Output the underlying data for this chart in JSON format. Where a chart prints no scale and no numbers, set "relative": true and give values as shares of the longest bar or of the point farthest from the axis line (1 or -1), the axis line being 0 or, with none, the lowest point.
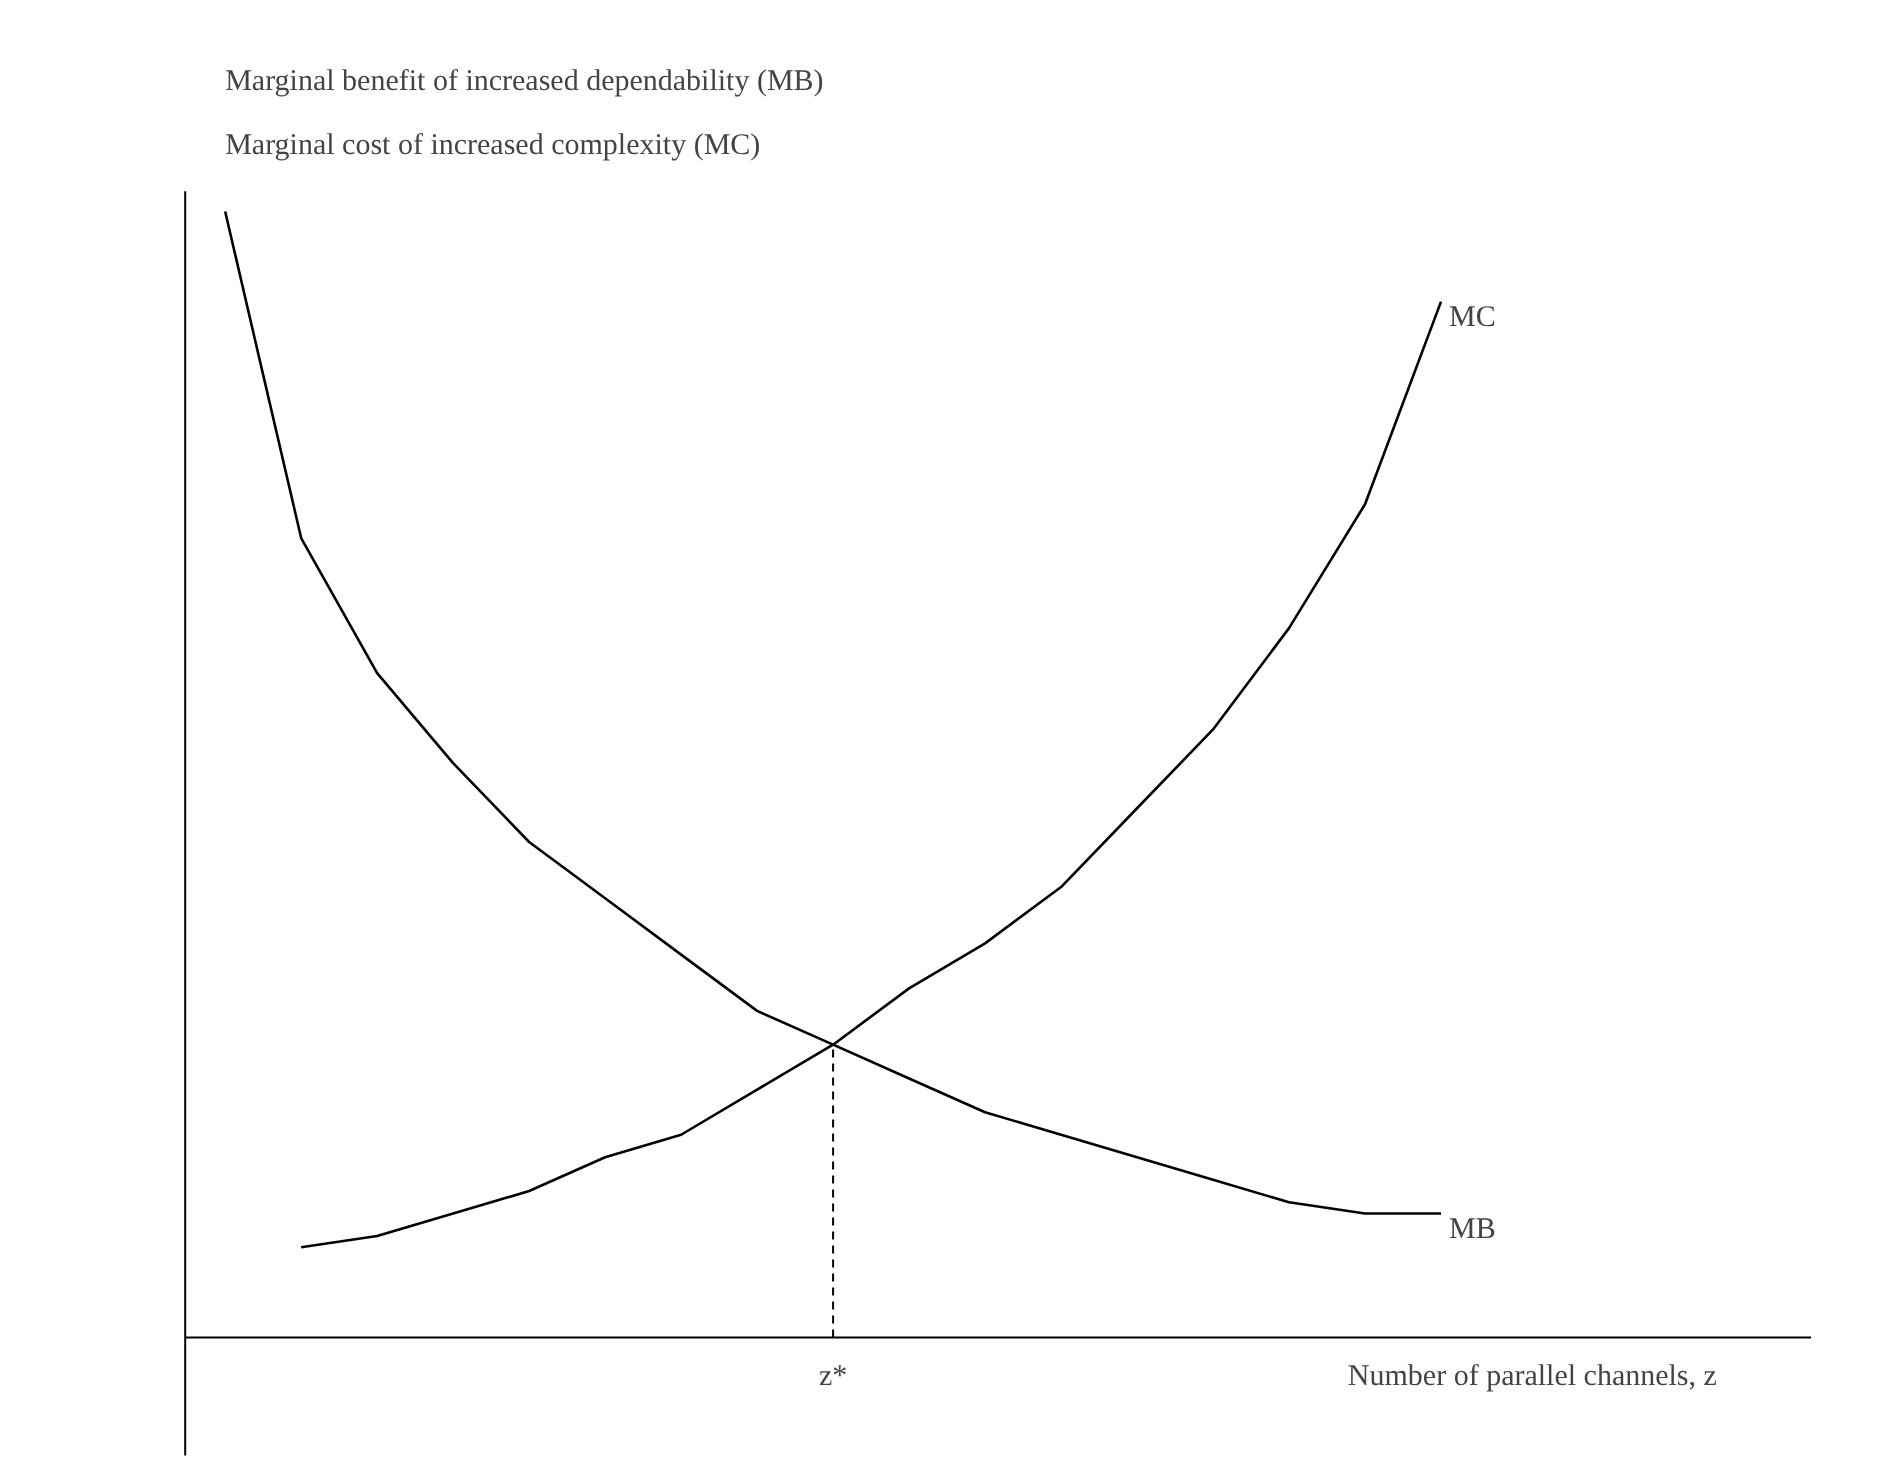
{
  "chart_data": {
    "type": "line",
    "relative": true,
    "ylabel": "Marginal benefit of increased dependability (MB)\nMarginal cost of increased complexity (MC)",
    "xlabel": "Number of parallel channels, z",
    "categories": [
      null,
      null,
      null,
      null,
      null,
      null,
      null,
      null,
      null,
      null,
      null,
      null,
      null,
      null,
      null,
      null,
      null
    ],
    "series": [
      {
        "name": "MC",
        "color": "#000000",
        "values": [
          null,
          0.08,
          0.09,
          0.11,
          0.13,
          0.16,
          0.18,
          0.22,
          0.26,
          0.31,
          0.35,
          0.4,
          0.47,
          0.54,
          0.63,
          0.74,
          0.92
        ]
      },
      {
        "name": "MB",
        "color": "#000000",
        "values": [
          1.0,
          0.71,
          0.59,
          0.51,
          0.44,
          0.39,
          0.34,
          0.29,
          0.26,
          0.23,
          0.2,
          0.18,
          0.16,
          0.14,
          0.12,
          0.11,
          0.11
        ]
      }
    ],
    "annotations": [
      "z*"
    ],
    "grid": false,
    "legend": false,
    "marker": "none",
    "line_style": "solid"
  }
}
